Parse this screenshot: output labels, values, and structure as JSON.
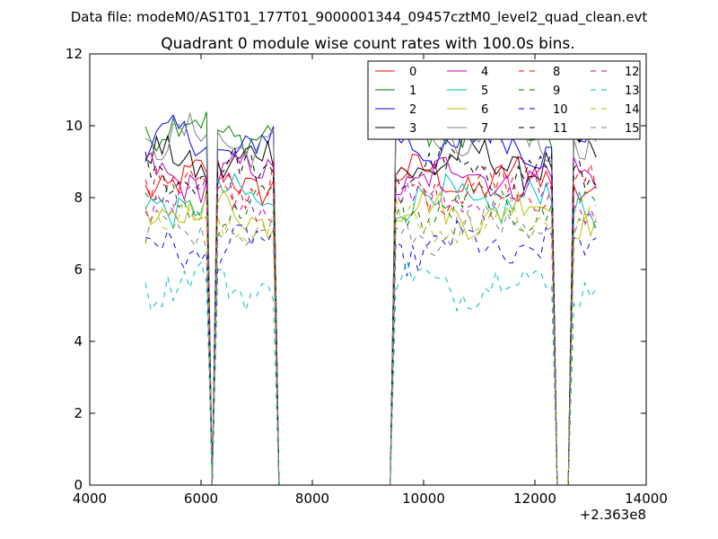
{
  "figure": {
    "suptitle": "Data file: modeM0/AS1T01_177T01_9000001344_09457cztM0_level2_quad_clean.evt"
  },
  "chart_data": {
    "type": "line",
    "title": "Quadrant 0 module wise count rates with 100.0s bins.",
    "xlabel": "",
    "ylabel": "",
    "xlim": [
      4000,
      14000
    ],
    "ylim": [
      0,
      12
    ],
    "x_offset_label": "+2.363e8",
    "x_ticks": [
      4000,
      6000,
      8000,
      10000,
      12000,
      14000
    ],
    "y_ticks": [
      0,
      2,
      4,
      6,
      8,
      10,
      12
    ],
    "grid": false,
    "legend_position": "top-right",
    "bin_seconds": 100,
    "good_time_intervals": [
      [
        5000,
        6100
      ],
      [
        6300,
        7300
      ],
      [
        9500,
        12300
      ],
      [
        12700,
        13150
      ]
    ],
    "zero_intervals": [
      [
        6200,
        6200
      ],
      [
        7400,
        9400
      ],
      [
        12400,
        12600
      ]
    ],
    "series": [
      {
        "name": "0",
        "color": "#ff0000",
        "style": "solid",
        "mean_level": 8.5
      },
      {
        "name": "1",
        "color": "#008000",
        "style": "solid",
        "mean_level": 9.9
      },
      {
        "name": "2",
        "color": "#0000ff",
        "style": "solid",
        "mean_level": 9.5
      },
      {
        "name": "3",
        "color": "#000000",
        "style": "solid",
        "mean_level": 9.0
      },
      {
        "name": "4",
        "color": "#bf00bf",
        "style": "solid",
        "mean_level": 8.6
      },
      {
        "name": "5",
        "color": "#00bfbf",
        "style": "solid",
        "mean_level": 7.9
      },
      {
        "name": "6",
        "color": "#bfbf00",
        "style": "solid",
        "mean_level": 7.6
      },
      {
        "name": "7",
        "color": "#808080",
        "style": "solid",
        "mean_level": 9.6
      },
      {
        "name": "8",
        "color": "#ff0000",
        "style": "dashed",
        "mean_level": 8.3
      },
      {
        "name": "9",
        "color": "#008000",
        "style": "dashed",
        "mean_level": 7.7
      },
      {
        "name": "10",
        "color": "#0000ff",
        "style": "dashed",
        "mean_level": 6.6
      },
      {
        "name": "11",
        "color": "#000000",
        "style": "dashed",
        "mean_level": 8.7
      },
      {
        "name": "12",
        "color": "#bf00bf",
        "style": "dashed",
        "mean_level": 8.0
      },
      {
        "name": "13",
        "color": "#00bfbf",
        "style": "dashed",
        "mean_level": 5.6
      },
      {
        "name": "14",
        "color": "#bfbf00",
        "style": "dashed",
        "mean_level": 7.3
      },
      {
        "name": "15",
        "color": "#808080",
        "style": "dashed",
        "mean_level": 7.1
      }
    ]
  }
}
